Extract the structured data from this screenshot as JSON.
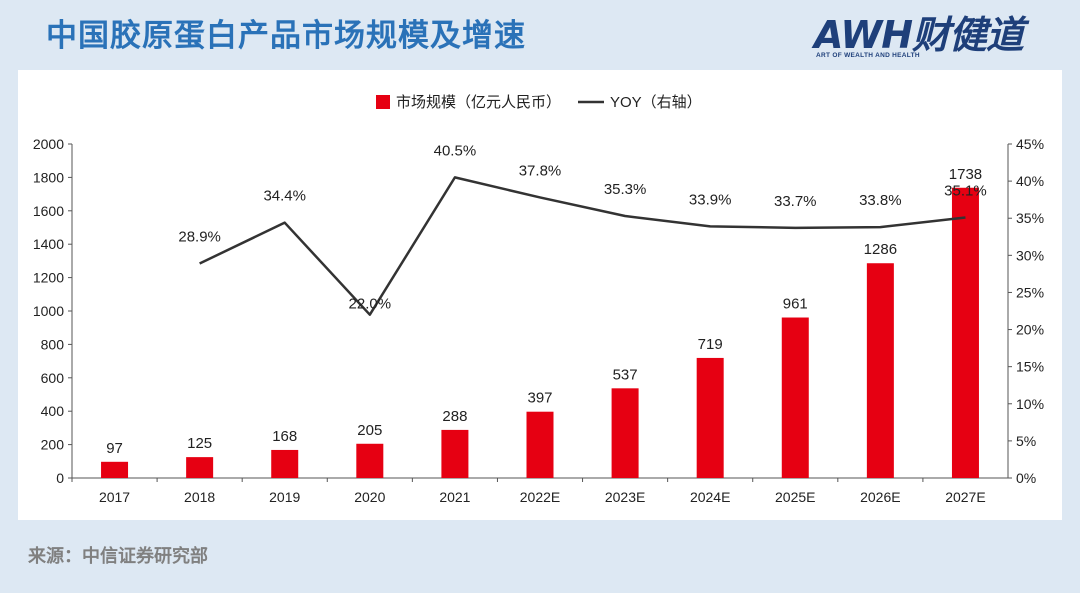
{
  "header": {
    "title": "中国胶原蛋白产品市场规模及增速",
    "logo_main": "AWH财健道",
    "logo_sub": "ART OF WEALTH AND HEALTH"
  },
  "footer": {
    "source": "来源：中信证券研究部"
  },
  "colors": {
    "bar": "#e60012",
    "line": "#333333",
    "title": "#2a72b8",
    "background": "#dde8f3"
  },
  "chart_data": {
    "type": "bar",
    "categories": [
      "2017",
      "2018",
      "2019",
      "2020",
      "2021",
      "2022E",
      "2023E",
      "2024E",
      "2025E",
      "2026E",
      "2027E"
    ],
    "series": [
      {
        "name": "市场规模（亿元人民币）",
        "type": "bar",
        "axis": "left",
        "values": [
          97,
          125,
          168,
          205,
          288,
          397,
          537,
          719,
          961,
          1286,
          1738
        ],
        "labels": [
          "97",
          "125",
          "168",
          "205",
          "288",
          "397",
          "537",
          "719",
          "961",
          "1286",
          "1738"
        ]
      },
      {
        "name": "YOY（右轴）",
        "type": "line",
        "axis": "right",
        "values": [
          null,
          28.9,
          34.4,
          22.0,
          40.5,
          37.8,
          35.3,
          33.9,
          33.7,
          33.8,
          35.1
        ],
        "labels": [
          "",
          "28.9%",
          "34.4%",
          "22.0%",
          "40.5%",
          "37.8%",
          "35.3%",
          "33.9%",
          "33.7%",
          "33.8%",
          "35.1%"
        ]
      }
    ],
    "y_left": {
      "min": 0,
      "max": 2000,
      "ticks": [
        "0",
        "200",
        "400",
        "600",
        "800",
        "1000",
        "1200",
        "1400",
        "1600",
        "1800",
        "2000"
      ]
    },
    "y_right": {
      "min": 0,
      "max": 45,
      "ticks": [
        "0%",
        "5%",
        "10%",
        "15%",
        "20%",
        "25%",
        "30%",
        "35%",
        "40%",
        "45%"
      ]
    },
    "legend_position": "top",
    "grid": false,
    "title": "",
    "xlabel": "",
    "ylabel": ""
  }
}
